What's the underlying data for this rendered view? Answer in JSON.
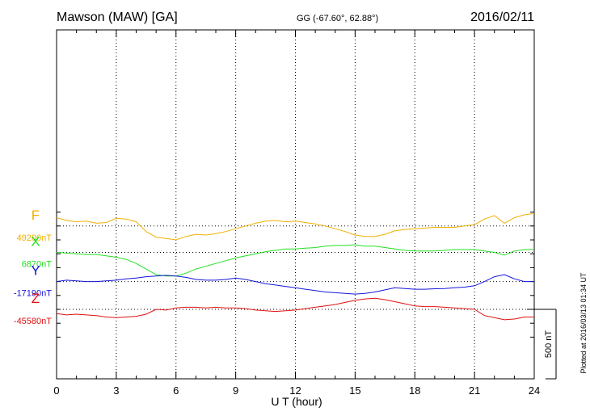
{
  "header": {
    "station": "Mawson (MAW)  [GA]",
    "coords": "GG (-67.60°,  62.88°)",
    "date": "2016/02/11"
  },
  "footer": {
    "plotted": "Plotted at 2016/03/13 01:34  UT",
    "scale_label": "500 nT"
  },
  "chart_data": {
    "type": "line",
    "xlabel": "U T (hour)",
    "xlim": [
      0,
      24
    ],
    "xticks": [
      "0",
      "3",
      "6",
      "9",
      "12",
      "15",
      "18",
      "21",
      "24"
    ],
    "scale_bar_nT": 500,
    "ylim_offset_nT": [
      -200,
      780
    ],
    "series": [
      {
        "name": "F",
        "baseline_label": "49200nT",
        "baseline_nT": 49200,
        "color": "#f0b000",
        "baseline_offset_nT": 600,
        "x": [
          0,
          0.5,
          1,
          1.5,
          2,
          2.5,
          3,
          3.5,
          4,
          4.5,
          5,
          5.5,
          6,
          6.5,
          7,
          7.5,
          8,
          8.5,
          9,
          9.5,
          10,
          10.5,
          11,
          11.5,
          12,
          12.5,
          13,
          13.5,
          14,
          14.5,
          15,
          15.5,
          16,
          16.5,
          17,
          17.5,
          18,
          18.5,
          19,
          19.5,
          20,
          20.5,
          21,
          21.5,
          22,
          22.5,
          23,
          23.5,
          24
        ],
        "y": [
          660,
          640,
          630,
          635,
          620,
          625,
          655,
          650,
          630,
          560,
          520,
          510,
          500,
          525,
          540,
          535,
          545,
          560,
          580,
          600,
          620,
          635,
          640,
          630,
          635,
          625,
          615,
          600,
          580,
          560,
          535,
          525,
          525,
          540,
          565,
          575,
          580,
          585,
          590,
          590,
          590,
          600,
          610,
          650,
          675,
          620,
          660,
          680,
          690
        ]
      },
      {
        "name": "X",
        "baseline_label": "6870nT",
        "baseline_nT": 6870,
        "color": "#22e022",
        "baseline_offset_nT": 410,
        "x": [
          0,
          0.5,
          1,
          1.5,
          2,
          2.5,
          3,
          3.5,
          4,
          4.5,
          5,
          5.5,
          6,
          6.5,
          7,
          7.5,
          8,
          8.5,
          9,
          9.5,
          10,
          10.5,
          11,
          11.5,
          12,
          12.5,
          13,
          13.5,
          14,
          14.5,
          15,
          15.5,
          16,
          16.5,
          17,
          17.5,
          18,
          18.5,
          19,
          19.5,
          20,
          20.5,
          21,
          21.5,
          22,
          22.5,
          23,
          23.5,
          24
        ],
        "y": [
          410,
          405,
          400,
          395,
          395,
          385,
          375,
          360,
          330,
          290,
          250,
          240,
          240,
          260,
          290,
          310,
          330,
          350,
          370,
          385,
          400,
          415,
          425,
          435,
          435,
          440,
          445,
          455,
          460,
          460,
          465,
          455,
          455,
          445,
          435,
          425,
          420,
          420,
          420,
          425,
          430,
          430,
          430,
          420,
          410,
          390,
          420,
          430,
          430
        ]
      },
      {
        "name": "Y",
        "baseline_label": "-17190nT",
        "baseline_nT": -17190,
        "color": "#1515dd",
        "baseline_offset_nT": 200,
        "x": [
          0,
          0.5,
          1,
          1.5,
          2,
          2.5,
          3,
          3.5,
          4,
          4.5,
          5,
          5.5,
          6,
          6.5,
          7,
          7.5,
          8,
          8.5,
          9,
          9.5,
          10,
          10.5,
          11,
          11.5,
          12,
          12.5,
          13,
          13.5,
          14,
          14.5,
          15,
          15.5,
          16,
          16.5,
          17,
          17.5,
          18,
          18.5,
          19,
          19.5,
          20,
          20.5,
          21,
          21.5,
          22,
          22.5,
          23,
          23.5,
          24
        ],
        "y": [
          200,
          210,
          205,
          200,
          200,
          205,
          210,
          220,
          225,
          235,
          240,
          245,
          240,
          230,
          215,
          210,
          210,
          215,
          225,
          215,
          200,
          185,
          175,
          165,
          155,
          145,
          135,
          125,
          120,
          115,
          110,
          115,
          125,
          140,
          155,
          150,
          145,
          145,
          148,
          150,
          155,
          160,
          170,
          200,
          235,
          250,
          220,
          200,
          200
        ]
      },
      {
        "name": "Z",
        "baseline_label": "-45580nT",
        "baseline_nT": -45580,
        "color": "#e01010",
        "baseline_offset_nT": 0,
        "x": [
          0,
          0.5,
          1,
          1.5,
          2,
          2.5,
          3,
          3.5,
          4,
          4.5,
          5,
          5.5,
          6,
          6.5,
          7,
          7.5,
          8,
          8.5,
          9,
          9.5,
          10,
          10.5,
          11,
          11.5,
          12,
          12.5,
          13,
          13.5,
          14,
          14.5,
          15,
          15.5,
          16,
          16.5,
          17,
          17.5,
          18,
          18.5,
          19,
          19.5,
          20,
          20.5,
          21,
          21.5,
          22,
          22.5,
          23,
          23.5,
          24
        ],
        "y": [
          -30,
          -40,
          -35,
          -40,
          -45,
          -55,
          -60,
          -55,
          -50,
          -35,
          0,
          -5,
          10,
          15,
          15,
          10,
          15,
          10,
          10,
          5,
          -5,
          -10,
          -15,
          -10,
          -5,
          5,
          15,
          25,
          35,
          50,
          65,
          75,
          80,
          70,
          55,
          40,
          25,
          20,
          20,
          15,
          10,
          5,
          0,
          -45,
          -60,
          -75,
          -70,
          -55,
          -55
        ]
      }
    ]
  }
}
